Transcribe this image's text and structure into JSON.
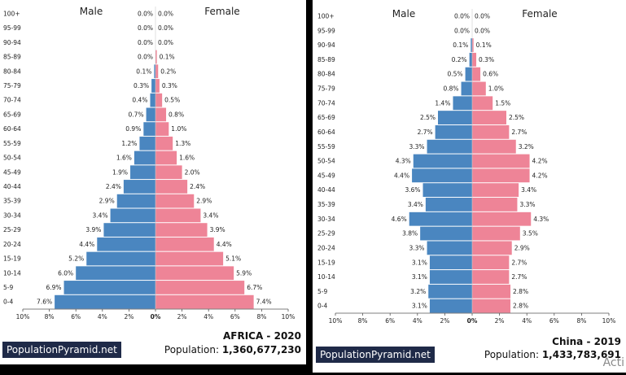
{
  "chart_data": [
    {
      "type": "bar",
      "subtype": "population-pyramid",
      "age_groups": [
        "100+",
        "95-99",
        "90-94",
        "85-89",
        "80-84",
        "75-79",
        "70-74",
        "65-69",
        "60-64",
        "55-59",
        "50-54",
        "45-49",
        "40-44",
        "35-39",
        "30-34",
        "25-29",
        "20-24",
        "15-19",
        "10-14",
        "5-9",
        "0-4"
      ],
      "series": [
        {
          "name": "Male",
          "color": "#4a86c0",
          "values": [
            0.0,
            0.0,
            0.0,
            0.0,
            0.1,
            0.3,
            0.4,
            0.7,
            0.9,
            1.2,
            1.6,
            1.9,
            2.4,
            2.9,
            3.4,
            3.9,
            4.4,
            5.2,
            6.0,
            6.9,
            7.6
          ]
        },
        {
          "name": "Female",
          "color": "#ee8497",
          "values": [
            0.0,
            0.0,
            0.0,
            0.1,
            0.2,
            0.3,
            0.5,
            0.8,
            1.0,
            1.3,
            1.6,
            2.0,
            2.4,
            2.9,
            3.4,
            3.9,
            4.4,
            5.1,
            5.9,
            6.7,
            7.4
          ]
        }
      ],
      "xticks": [
        "10%",
        "8%",
        "6%",
        "4%",
        "2%",
        "0%",
        "2%",
        "4%",
        "6%",
        "8%",
        "10%"
      ],
      "xlim": [
        -10,
        10
      ],
      "title": "AFRICA - 2020",
      "population_label": "Population:",
      "population_value": "1,360,677,230",
      "brand": "PopulationPyramid.net"
    },
    {
      "type": "bar",
      "subtype": "population-pyramid",
      "age_groups": [
        "100+",
        "95-99",
        "90-94",
        "85-89",
        "80-84",
        "75-79",
        "70-74",
        "65-69",
        "60-64",
        "55-59",
        "50-54",
        "45-49",
        "40-44",
        "35-39",
        "30-34",
        "25-29",
        "20-24",
        "15-19",
        "10-14",
        "5-9",
        "0-4"
      ],
      "series": [
        {
          "name": "Male",
          "color": "#4a86c0",
          "values": [
            0.0,
            0.0,
            0.1,
            0.2,
            0.5,
            0.8,
            1.4,
            2.5,
            2.7,
            3.3,
            4.3,
            4.4,
            3.6,
            3.4,
            4.6,
            3.8,
            3.3,
            3.1,
            3.1,
            3.2,
            3.1
          ]
        },
        {
          "name": "Female",
          "color": "#ee8497",
          "values": [
            0.0,
            0.0,
            0.1,
            0.3,
            0.6,
            1.0,
            1.5,
            2.5,
            2.7,
            3.2,
            4.2,
            4.2,
            3.4,
            3.3,
            4.3,
            3.5,
            2.9,
            2.7,
            2.7,
            2.8,
            2.8
          ]
        }
      ],
      "xticks": [
        "10%",
        "8%",
        "6%",
        "4%",
        "2%",
        "0%",
        "2%",
        "4%",
        "6%",
        "8%",
        "10%"
      ],
      "xlim": [
        -10,
        10
      ],
      "title": "China - 2019",
      "population_label": "Population:",
      "population_value": "1,433,783,691",
      "brand": "PopulationPyramid.net"
    }
  ],
  "watermark": "Acti"
}
